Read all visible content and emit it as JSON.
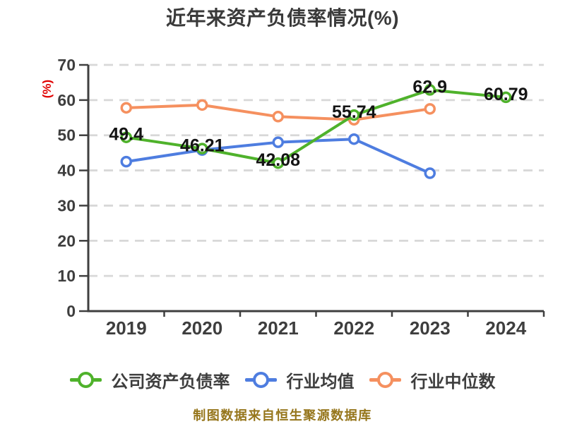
{
  "chart_data": {
    "type": "line",
    "title": "近年来资产负债率情况(%)",
    "ylabel": "(%)",
    "xlabel": "",
    "caption": "制图数据来自恒生聚源数据库",
    "x_categories": [
      "2019",
      "2020",
      "2021",
      "2022",
      "2023",
      "2024"
    ],
    "ylim": [
      0,
      70
    ],
    "ytick_step": 10,
    "grid": "horizontal-dashed",
    "legend_position": "bottom",
    "series": [
      {
        "name": "公司资产负债率",
        "color": "#4FB22B",
        "x": [
          "2019",
          "2020",
          "2021",
          "2022",
          "2023",
          "2024"
        ],
        "values": [
          49.4,
          46.21,
          42.08,
          55.74,
          62.9,
          60.79
        ],
        "point_labels": [
          "49.4",
          "46.21",
          "42.08",
          "55.74",
          "62.9",
          "60.79"
        ]
      },
      {
        "name": "行业均值",
        "color": "#4E7DE0",
        "x": [
          "2019",
          "2020",
          "2021",
          "2022",
          "2023"
        ],
        "values": [
          42.5,
          45.8,
          48.0,
          48.9,
          39.2
        ],
        "point_labels": []
      },
      {
        "name": "行业中位数",
        "color": "#F5905F",
        "x": [
          "2019",
          "2020",
          "2021",
          "2022",
          "2023"
        ],
        "values": [
          57.8,
          58.6,
          55.3,
          54.4,
          57.5
        ],
        "point_labels": []
      }
    ],
    "style": {
      "background": "#FFFFFF",
      "title_color": "#3A3A3A",
      "grid_color": "#D8D8D8",
      "axis_color": "#3F3F3F",
      "tick_text_color": "#3E3E3E",
      "point_label_color": "#141414",
      "ylabel_color": "#E00000",
      "legend_text_color": "#3E3E3E",
      "caption_color": "#96761C"
    }
  }
}
